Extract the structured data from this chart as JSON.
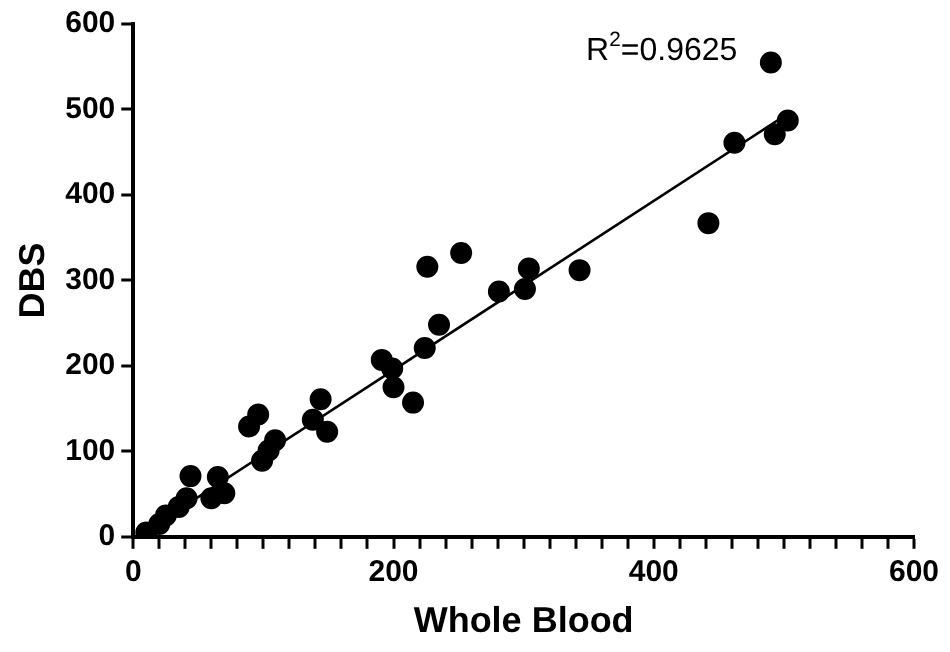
{
  "chart_data": {
    "type": "scatter",
    "xlabel": "Whole Blood",
    "ylabel": "DBS",
    "annotations": [
      "R$^{2}$=0.9625"
    ],
    "xlim": [
      0,
      600
    ],
    "ylim": [
      0,
      600
    ],
    "xticks": [
      0,
      {
        "value": 20,
        "label": null
      },
      {
        "value": 40,
        "label": null
      },
      {
        "value": 60,
        "label": null
      },
      {
        "value": 80,
        "label": null
      },
      {
        "value": 100,
        "label": null
      },
      {
        "value": 120,
        "label": null
      },
      {
        "value": 140,
        "label": null
      },
      {
        "value": 160,
        "label": null
      },
      {
        "value": 180,
        "label": null
      },
      200,
      {
        "value": 220,
        "label": null
      },
      {
        "value": 240,
        "label": null
      },
      {
        "value": 260,
        "label": null
      },
      {
        "value": 280,
        "label": null
      },
      {
        "value": 300,
        "label": null
      },
      {
        "value": 320,
        "label": null
      },
      {
        "value": 340,
        "label": null
      },
      {
        "value": 360,
        "label": null
      },
      {
        "value": 380,
        "label": null
      },
      400,
      {
        "value": 420,
        "label": null
      },
      {
        "value": 440,
        "label": null
      },
      {
        "value": 460,
        "label": null
      },
      {
        "value": 480,
        "label": null
      },
      {
        "value": 500,
        "label": null
      },
      {
        "value": 520,
        "label": null
      },
      {
        "value": 540,
        "label": null
      },
      {
        "value": 560,
        "label": null
      },
      {
        "value": 580,
        "label": null
      },
      600
    ],
    "yticks": [
      0,
      100,
      200,
      300,
      400,
      500,
      600
    ],
    "grid": false,
    "legend": false,
    "marker": "circle",
    "series": [
      {
        "color": "#000000",
        "x": [
          490,
          503,
          493,
          462,
          442,
          343,
          304,
          301,
          226,
          252,
          281,
          235,
          224,
          191,
          199,
          200,
          215,
          144,
          138,
          149,
          96,
          89,
          109,
          104,
          99,
          70,
          44,
          41,
          10,
          20,
          25,
          35,
          60,
          65
        ],
        "values": [
          555,
          487,
          471,
          461,
          367,
          312,
          314,
          290,
          316,
          332,
          287,
          248,
          221,
          207,
          197,
          175,
          157,
          161,
          137,
          123,
          143,
          129,
          113,
          101,
          89,
          51,
          71,
          45,
          5,
          15,
          25,
          35,
          45,
          70
        ]
      },
      {
        "type": "line",
        "color": "#000000",
        "marker": "none",
        "x": [
          10,
          505
        ],
        "values": [
          7,
          497
        ]
      }
    ]
  }
}
